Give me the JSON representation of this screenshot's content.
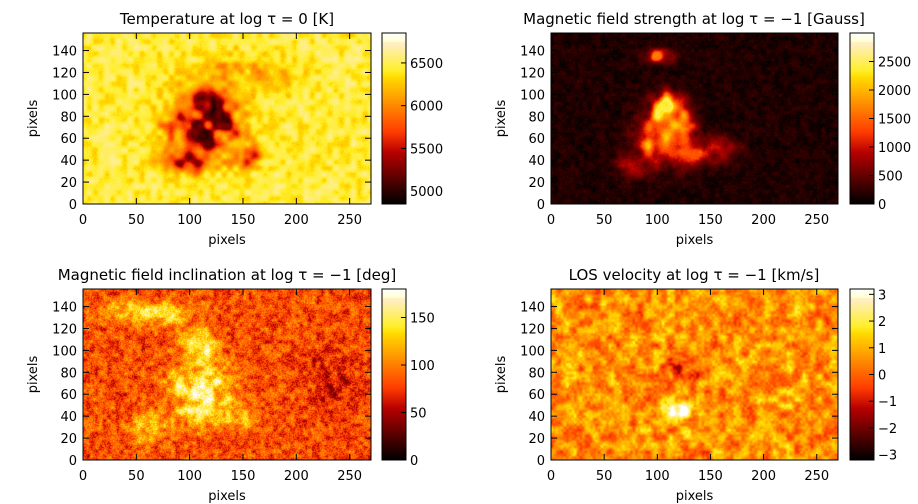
{
  "figure": {
    "colormap": "hot"
  },
  "chart_data": [
    {
      "type": "heatmap",
      "title": "Temperature at log τ = 0 [K]",
      "xlabel": "pixels",
      "ylabel": "pixels",
      "xlim": [
        0,
        270
      ],
      "ylim": [
        0,
        156
      ],
      "xticks": [
        0,
        50,
        100,
        150,
        200,
        250
      ],
      "yticks": [
        0,
        20,
        40,
        60,
        80,
        100,
        120,
        140
      ],
      "colorbar": {
        "min": 4850,
        "max": 6850,
        "ticks": [
          5000,
          5500,
          6000,
          6500
        ],
        "labels": [
          "5000",
          "5500",
          "6000",
          "6500"
        ]
      },
      "field": {
        "background": 6450,
        "noise": 260,
        "grain": "granulation",
        "features": [
          {
            "cx": 115,
            "cy": 72,
            "rx": 40,
            "ry": 32,
            "value": 5150
          },
          {
            "cx": 118,
            "cy": 95,
            "rx": 18,
            "ry": 16,
            "value": 4950
          },
          {
            "cx": 100,
            "cy": 40,
            "rx": 28,
            "ry": 12,
            "value": 5200
          },
          {
            "cx": 150,
            "cy": 45,
            "rx": 18,
            "ry": 12,
            "value": 5500
          },
          {
            "cx": 145,
            "cy": 118,
            "rx": 60,
            "ry": 20,
            "value": 6100
          }
        ]
      }
    },
    {
      "type": "heatmap",
      "title": "Magnetic field strength at log τ = −1 [Gauss]",
      "xlabel": "pixels",
      "ylabel": "pixels",
      "xlim": [
        0,
        270
      ],
      "ylim": [
        0,
        156
      ],
      "xticks": [
        0,
        50,
        100,
        150,
        200,
        250
      ],
      "yticks": [
        0,
        20,
        40,
        60,
        80,
        100,
        120,
        140
      ],
      "colorbar": {
        "min": 0,
        "max": 3000,
        "ticks": [
          0,
          500,
          1000,
          1500,
          2000,
          2500
        ],
        "labels": [
          "0",
          "500",
          "1000",
          "1500",
          "2000",
          "2500"
        ]
      },
      "field": {
        "background": 150,
        "noise": 220,
        "grain": "fine",
        "features": [
          {
            "cx": 108,
            "cy": 60,
            "rx": 30,
            "ry": 25,
            "value": 2100
          },
          {
            "cx": 110,
            "cy": 85,
            "rx": 18,
            "ry": 20,
            "value": 2400
          },
          {
            "cx": 145,
            "cy": 50,
            "rx": 28,
            "ry": 14,
            "value": 1400
          },
          {
            "cx": 80,
            "cy": 35,
            "rx": 18,
            "ry": 14,
            "value": 1000
          },
          {
            "cx": 100,
            "cy": 135,
            "rx": 14,
            "ry": 8,
            "value": 1600
          }
        ]
      }
    },
    {
      "type": "heatmap",
      "title": "Magnetic field inclination at log τ = −1 [deg]",
      "xlabel": "pixels",
      "ylabel": "pixels",
      "xlim": [
        0,
        270
      ],
      "ylim": [
        0,
        156
      ],
      "xticks": [
        0,
        50,
        100,
        150,
        200,
        250
      ],
      "yticks": [
        0,
        20,
        40,
        60,
        80,
        100,
        120,
        140
      ],
      "colorbar": {
        "min": 0,
        "max": 180,
        "ticks": [
          0,
          50,
          100,
          150
        ],
        "labels": [
          "0",
          "50",
          "100",
          "150"
        ]
      },
      "field": {
        "background": 82,
        "noise": 45,
        "grain": "fine",
        "features": [
          {
            "cx": 110,
            "cy": 65,
            "rx": 32,
            "ry": 35,
            "value": 170
          },
          {
            "cx": 110,
            "cy": 105,
            "rx": 16,
            "ry": 14,
            "value": 165
          },
          {
            "cx": 60,
            "cy": 135,
            "rx": 45,
            "ry": 14,
            "value": 145
          },
          {
            "cx": 60,
            "cy": 30,
            "rx": 25,
            "ry": 15,
            "value": 135
          },
          {
            "cx": 145,
            "cy": 40,
            "rx": 25,
            "ry": 12,
            "value": 140
          },
          {
            "cx": 230,
            "cy": 70,
            "rx": 25,
            "ry": 30,
            "value": 55
          }
        ]
      }
    },
    {
      "type": "heatmap",
      "title": "LOS velocity at log τ = −1 [km/s]",
      "xlabel": "pixels",
      "ylabel": "pixels",
      "xlim": [
        0,
        270
      ],
      "ylim": [
        0,
        156
      ],
      "xticks": [
        0,
        50,
        100,
        150,
        200,
        250
      ],
      "yticks": [
        0,
        20,
        40,
        60,
        80,
        100,
        120,
        140
      ],
      "colorbar": {
        "min": -3.2,
        "max": 3.2,
        "ticks": [
          -3,
          -2,
          -1,
          0,
          1,
          2,
          3
        ],
        "labels": [
          "−3",
          "−2",
          "−1",
          "0",
          "1",
          "2",
          "3"
        ]
      },
      "field": {
        "background": 0.6,
        "noise": 1.3,
        "grain": "blobs",
        "features": [
          {
            "cx": 118,
            "cy": 45,
            "rx": 16,
            "ry": 12,
            "value": 3.0
          },
          {
            "cx": 130,
            "cy": 25,
            "rx": 10,
            "ry": 8,
            "value": 2.6
          },
          {
            "cx": 120,
            "cy": 80,
            "rx": 20,
            "ry": 15,
            "value": -0.8
          }
        ]
      }
    }
  ]
}
